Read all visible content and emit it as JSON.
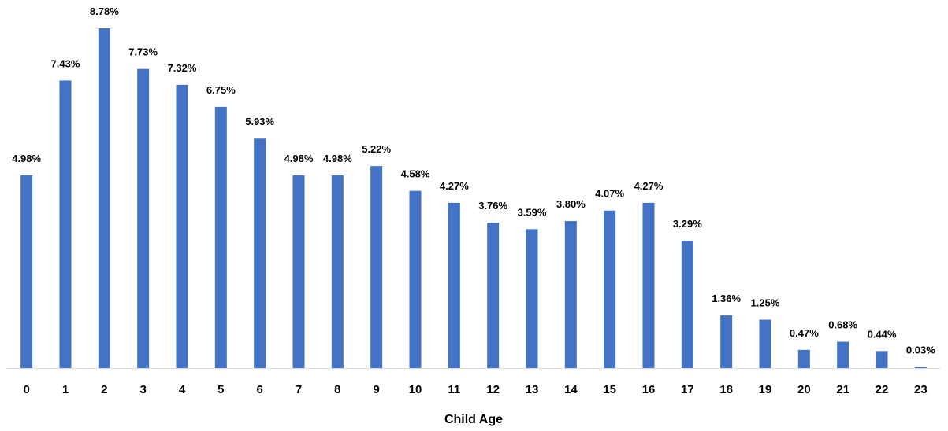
{
  "chart_data": {
    "type": "bar",
    "title": "",
    "xlabel": "Child Age",
    "ylabel": "",
    "categories": [
      "0",
      "1",
      "2",
      "3",
      "4",
      "5",
      "6",
      "7",
      "8",
      "9",
      "10",
      "11",
      "12",
      "13",
      "14",
      "15",
      "16",
      "17",
      "18",
      "19",
      "20",
      "21",
      "22",
      "23"
    ],
    "values": [
      4.98,
      7.43,
      8.78,
      7.73,
      7.32,
      6.75,
      5.93,
      4.98,
      4.98,
      5.22,
      4.58,
      4.27,
      3.76,
      3.59,
      3.8,
      4.07,
      4.27,
      3.29,
      1.36,
      1.25,
      0.47,
      0.68,
      0.44,
      0.03
    ],
    "value_labels": [
      "4.98%",
      "7.43%",
      "8.78%",
      "7.73%",
      "7.32%",
      "6.75%",
      "5.93%",
      "4.98%",
      "4.98%",
      "5.22%",
      "4.58%",
      "4.27%",
      "3.76%",
      "3.59%",
      "3.80%",
      "4.07%",
      "4.27%",
      "3.29%",
      "1.36%",
      "1.25%",
      "0.47%",
      "0.68%",
      "0.44%",
      "0.03%"
    ],
    "ylim": [
      0,
      8.78
    ],
    "grid": false,
    "legend": "none",
    "bar_color": "#4472C4",
    "axis_color": "#D9D9D9"
  }
}
